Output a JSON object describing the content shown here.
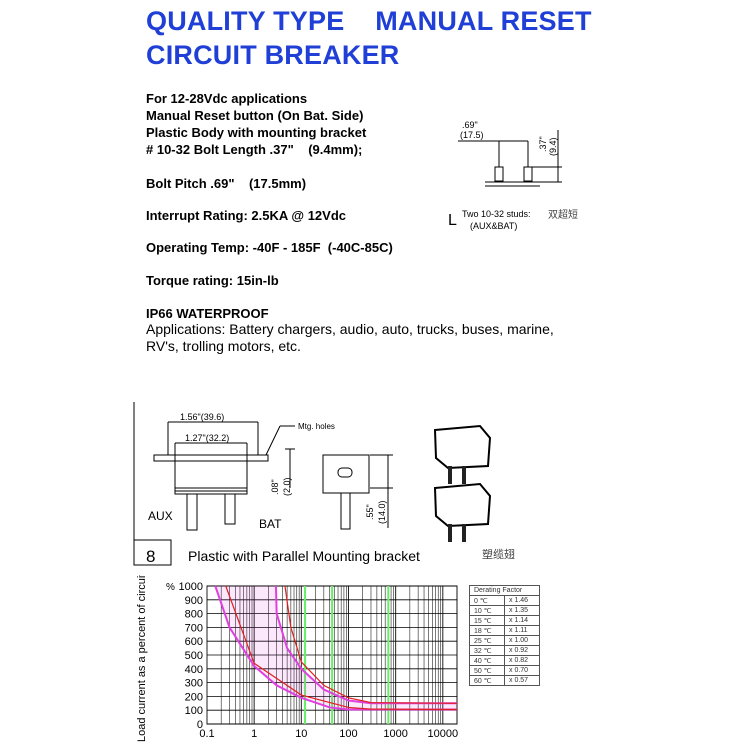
{
  "title": {
    "line1": "QUALITY TYPE    MANUAL RESET",
    "line2": "CIRCUIT BREAKER"
  },
  "specs": {
    "l1": "For 12-28Vdc applications",
    "l2": "Manual Reset button (On Bat. Side)",
    "l3": "Plastic Body with mounting bracket",
    "l4": "# 10-32 Bolt Length .37\"    (9.4mm);",
    "bolt_pitch": "Bolt Pitch .69\"    (17.5mm)",
    "interrupt": "Interrupt Rating: 2.5KA @ 12Vdc",
    "temp": "Operating Temp: -40F - 185F  (-40C-85C)",
    "torque": "Torque rating: 15in-lb",
    "waterproof": "IP66 WATERPROOF",
    "applications": "Applications: Battery chargers, audio, auto, trucks, buses, marine, RV's, trolling motors, etc."
  },
  "stud_diagram": {
    "dim_in": ".69\"",
    "dim_mm": "(17.5)",
    "h_in": ".37\"",
    "h_mm": "(9.4)",
    "letter": "L",
    "caption1": "Two 10-32 studs:",
    "caption2": "(AUX&BAT)",
    "cn": "双超短"
  },
  "bracket_diagram": {
    "w1": "1.56\"(39.6)",
    "w2": "1.27\"(32.2)",
    "mtg": "Mtg. holes",
    "d1_in": ".08\"",
    "d1_mm": "(2.0)",
    "d2_in": ".55\"",
    "d2_mm": "(14.0)",
    "aux": "AUX",
    "bat": "BAT",
    "number": "8",
    "caption": "Plastic with Parallel Mounting bracket",
    "cn": "塑缆翅"
  },
  "derating": {
    "header": "Derating Factor",
    "rows": [
      [
        "0 ℃",
        "x 1.46"
      ],
      [
        "10 ℃",
        "x 1.35"
      ],
      [
        "15 ℃",
        "x 1.14"
      ],
      [
        "18 ℃",
        "x 1.11"
      ],
      [
        "25 ℃",
        "x 1.00"
      ],
      [
        "32 ℃",
        "x 0.92"
      ],
      [
        "40 ℃",
        "x 0.82"
      ],
      [
        "50 ℃",
        "x 0.70"
      ],
      [
        "60 ℃",
        "x 0.57"
      ]
    ]
  },
  "chart_data": {
    "type": "line",
    "ylabel": "Load current as a percent of circuit break rating",
    "yunit": "%",
    "x_scale": "log",
    "xlim": [
      0.1,
      20000
    ],
    "ylim": [
      0,
      1000
    ],
    "x_ticks": [
      "0.1",
      "1",
      "10",
      "100",
      "1000",
      "10000"
    ],
    "y_ticks": [
      "1000",
      "900",
      "800",
      "700",
      "600",
      "500",
      "400",
      "300",
      "200",
      "100",
      "0"
    ],
    "grid": true,
    "colors": {
      "band": "#e040e0",
      "curve": "#e02020",
      "marker": "#66ee66"
    },
    "series": [
      {
        "color": "magenta",
        "points": [
          [
            0.15,
            1000
          ],
          [
            0.3,
            700
          ],
          [
            1,
            420
          ],
          [
            3,
            280
          ],
          [
            10,
            190
          ],
          [
            40,
            120
          ],
          [
            100,
            105
          ],
          [
            20000,
            105
          ]
        ]
      },
      {
        "color": "magenta",
        "points": [
          [
            2.9,
            1000
          ],
          [
            3,
            800
          ],
          [
            5,
            550
          ],
          [
            10,
            400
          ],
          [
            30,
            250
          ],
          [
            100,
            170
          ],
          [
            300,
            150
          ],
          [
            20000,
            150
          ]
        ]
      },
      {
        "color": "red",
        "points": [
          [
            0.25,
            1000
          ],
          [
            1,
            440
          ],
          [
            10,
            210
          ],
          [
            100,
            120
          ],
          [
            300,
            108
          ],
          [
            20000,
            105
          ]
        ]
      },
      {
        "color": "red",
        "points": [
          [
            4.5,
            1000
          ],
          [
            6,
            700
          ],
          [
            10,
            450
          ],
          [
            30,
            280
          ],
          [
            100,
            190
          ],
          [
            300,
            155
          ],
          [
            20000,
            150
          ]
        ]
      }
    ],
    "markers_x": [
      12,
      45,
      700
    ]
  }
}
